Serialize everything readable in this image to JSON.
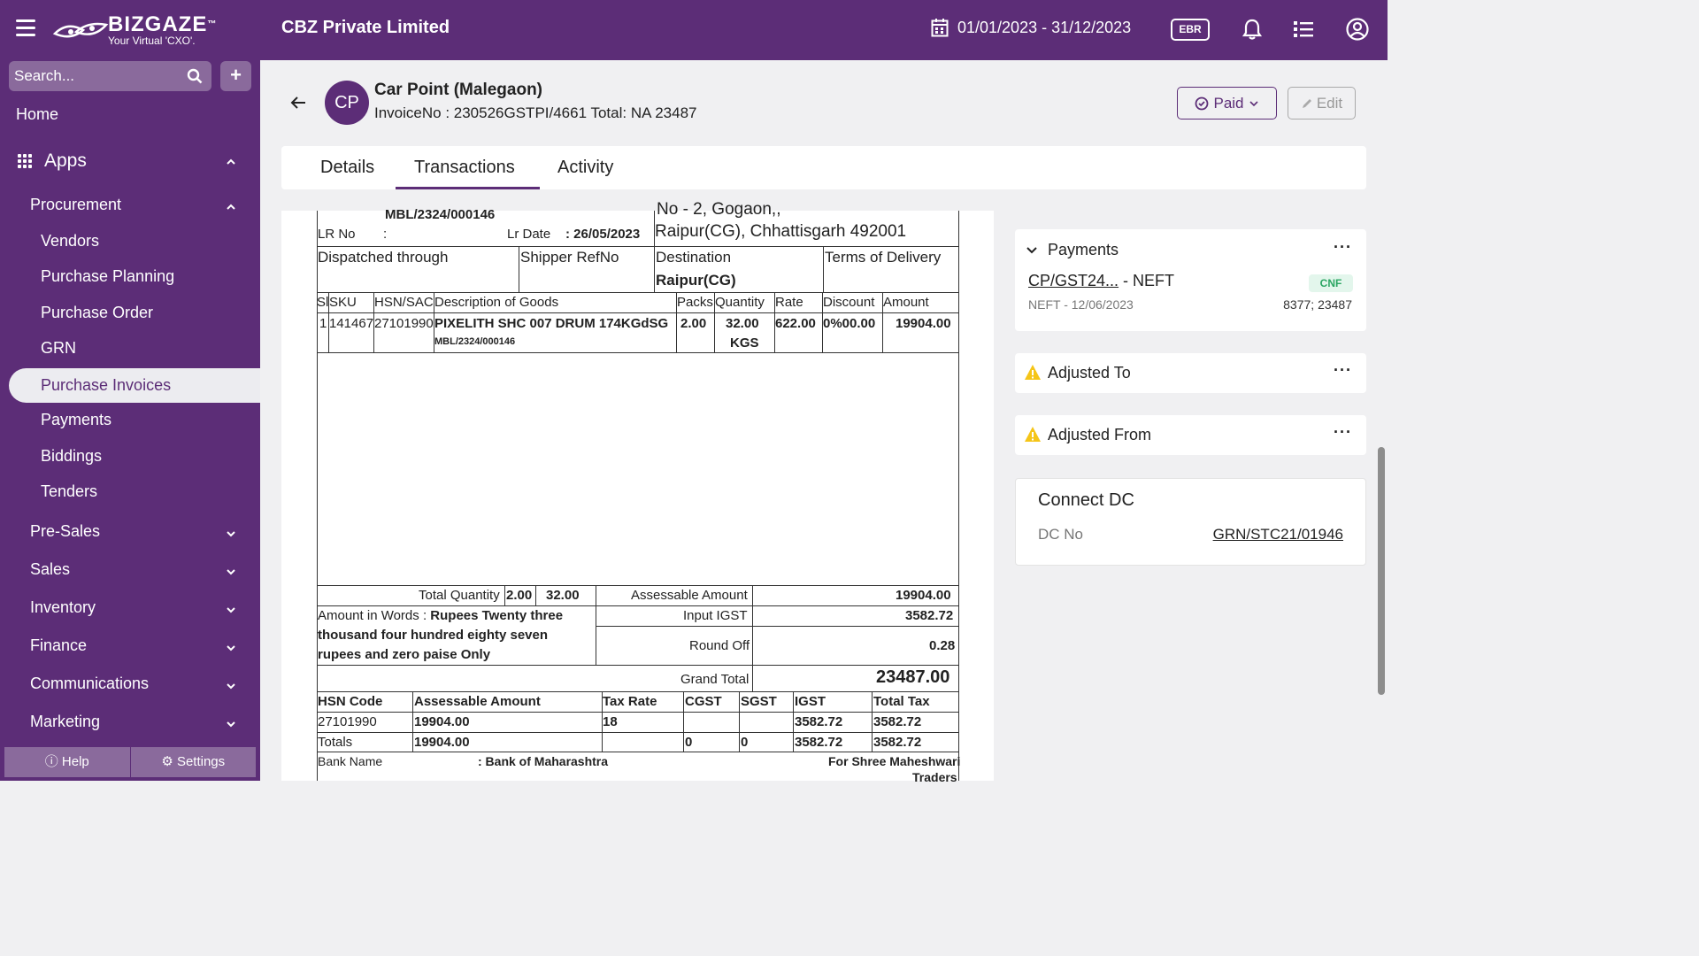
{
  "topbar": {
    "brand": "BIZGAZE",
    "tm": "™",
    "tagline": "Your Virtual 'CXO'.",
    "company": "CBZ Private Limited",
    "date_range": "01/01/2023 - 31/12/2023",
    "ebr": "EBR"
  },
  "sidebar": {
    "search_placeholder": "Search...",
    "add": "+",
    "home": "Home",
    "apps": "Apps",
    "procurement": "Procurement",
    "procurement_items": [
      "Vendors",
      "Purchase Planning",
      "Purchase Order",
      "GRN",
      "Purchase Invoices",
      "Payments",
      "Biddings",
      "Tenders"
    ],
    "active_item": "Purchase Invoices",
    "sections": [
      "Pre-Sales",
      "Sales",
      "Inventory",
      "Finance",
      "Communications",
      "Marketing"
    ],
    "help": "Help",
    "settings": "Settings"
  },
  "header": {
    "avatar": "CP",
    "party": "Car Point (Malegaon)",
    "invoice_line": "InvoiceNo : 230526GSTPI/4661  Total: NA 23487",
    "paid": "Paid",
    "edit": "Edit"
  },
  "tabs": [
    "Details",
    "Transactions",
    "Activity"
  ],
  "active_tab": "Transactions",
  "invoice": {
    "ref_top": "MBL/2324/000146",
    "address_top": "No - 2, Gogaon,,",
    "lr_no_label": "LR No",
    "lr_colon": ":",
    "lr_date_label": "Lr Date",
    "lr_date": ": 26/05/2023",
    "address_city": "Raipur(CG), Chhattisgarh 492001",
    "dispatched_label": "Dispatched through",
    "shipper_label": "Shipper RefNo",
    "destination_label": "Destination",
    "destination": "Raipur(CG)",
    "terms_label": "Terms of Delivery",
    "columns": [
      "Sl",
      "SKU",
      "HSN/SAC",
      "Description of Goods",
      "Packs",
      "Quantity",
      "Rate",
      "Discount",
      "Amount"
    ],
    "item": {
      "sl": "1",
      "sku": "141467",
      "hsn": "27101990",
      "description": "PIXELITH SHC 007 DRUM 174KGdSG",
      "sub_ref": "MBL/2324/000146",
      "packs": "2.00",
      "qty": "32.00",
      "unit": "KGS",
      "rate": "622.00",
      "discount": "0%00.00",
      "amount": "19904.00"
    },
    "total_qty_label": "Total Quantity",
    "total_packs": "2.00",
    "total_qty": "32.00",
    "assessable_label": "Assessable Amount",
    "assessable_value": "19904.00",
    "words_label": "Amount in Words :",
    "words_1": "Rupees Twenty three",
    "words_2": "thousand four hundred eighty seven",
    "words_3": "rupees and zero paise Only",
    "igst_label": "Input IGST",
    "igst_value": "3582.72",
    "roundoff_label": "Round Off",
    "roundoff_value": "0.28",
    "grand_label": "Grand Total",
    "grand_value": "23487.00",
    "tax_columns": [
      "HSN Code",
      "Assessable Amount",
      "Tax Rate",
      "CGST",
      "SGST",
      "IGST",
      "Total Tax"
    ],
    "tax_row": [
      "27101990",
      "19904.00",
      "18",
      "",
      "",
      "3582.72",
      "3582.72"
    ],
    "tax_totals": [
      "Totals",
      "19904.00",
      "",
      "0",
      "0",
      "3582.72",
      "3582.72"
    ],
    "bank_label": "Bank Name",
    "bank_value": ": Bank of Maharashtra",
    "for_label": "For Shree Maheshwari",
    "for_label_2": "Traders"
  },
  "right": {
    "payments_title": "Payments",
    "payment_ref": "CP/GST24...",
    "payment_mode": " - NEFT",
    "payment_badge": "CNF",
    "payment_sub": "NEFT - 12/06/2023",
    "payment_amount": "8377; 23487",
    "adjusted_to": "Adjusted To",
    "adjusted_from": "Adjusted From",
    "connect_title": "Connect DC",
    "dc_label": "DC No",
    "dc_value": "GRN/STC21/01946",
    "dots": "···"
  },
  "colors": {
    "primary": "#5c2d77",
    "badge_green": "#2aa562",
    "warning": "#f5c518"
  }
}
